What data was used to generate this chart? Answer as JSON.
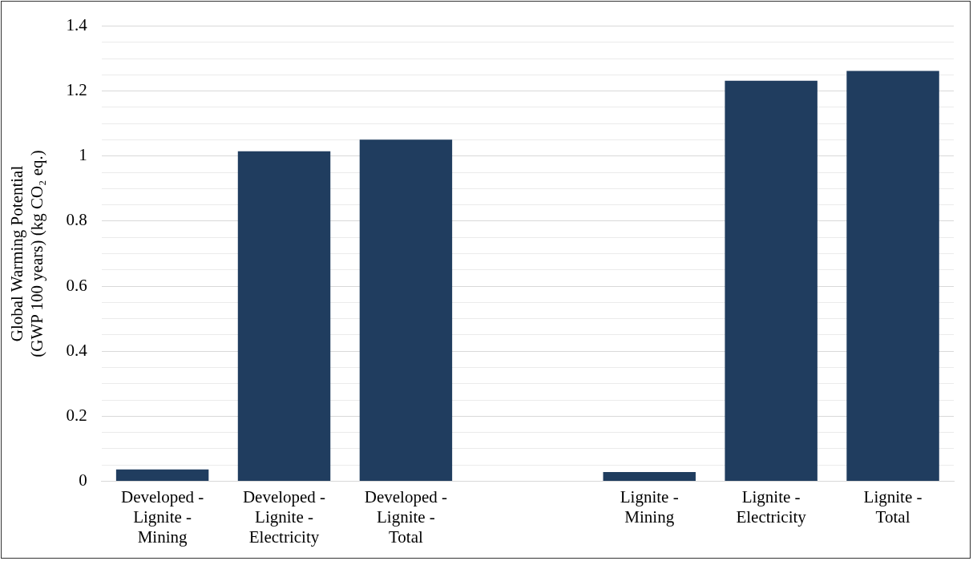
{
  "chart_data": {
    "type": "bar",
    "ylabel": "Global Warming Potential (GWP 100 years) (kg CO₂ eq.)",
    "categories": [
      "Developed - Lignite - Mining",
      "Developed - Lignite - Electricity",
      "Developed - Lignite - Total",
      null,
      "Lignite - Mining",
      "Lignite - Electricity",
      "Lignite - Total"
    ],
    "values": [
      0.036,
      1.015,
      1.051,
      null,
      0.028,
      1.232,
      1.262
    ],
    "color": "#203d5f",
    "ylim": [
      0,
      1.4
    ],
    "yticks": [
      0,
      {
        "value": 0.05,
        "label": null
      },
      {
        "value": 0.1,
        "label": null
      },
      {
        "value": 0.15,
        "label": null
      },
      0.2,
      {
        "value": 0.25,
        "label": null
      },
      {
        "value": 0.3,
        "label": null
      },
      {
        "value": 0.35,
        "label": null
      },
      0.4,
      {
        "value": 0.45,
        "label": null
      },
      {
        "value": 0.5,
        "label": null
      },
      {
        "value": 0.55,
        "label": null
      },
      0.6,
      {
        "value": 0.65,
        "label": null
      },
      {
        "value": 0.7,
        "label": null
      },
      {
        "value": 0.75,
        "label": null
      },
      0.8,
      {
        "value": 0.85,
        "label": null
      },
      {
        "value": 0.9,
        "label": null
      },
      {
        "value": 0.95,
        "label": null
      },
      1,
      {
        "value": 1.05,
        "label": null
      },
      {
        "value": 1.1,
        "label": null
      },
      {
        "value": 1.15,
        "label": null
      },
      1.2,
      {
        "value": 1.25,
        "label": null
      },
      {
        "value": 1.3,
        "label": null
      },
      {
        "value": 1.35,
        "label": null
      },
      1.4
    ],
    "grid": "y"
  }
}
